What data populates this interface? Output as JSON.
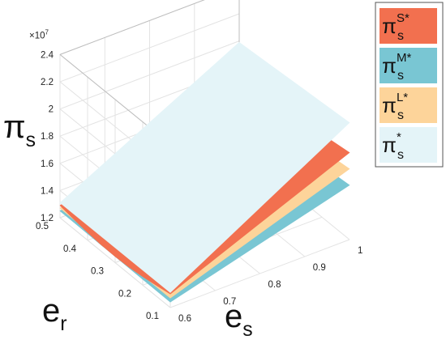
{
  "chart_data": {
    "type": "surface",
    "title": "",
    "xlabel": "e_s",
    "ylabel": "e_r",
    "zlabel": "π_s",
    "x_ticks": [
      0.6,
      0.7,
      0.8,
      0.9,
      1
    ],
    "y_ticks": [
      0.1,
      0.2,
      0.3,
      0.4,
      0.5
    ],
    "z_ticks": [
      1.2,
      1.4,
      1.6,
      1.8,
      2,
      2.2,
      2.4
    ],
    "z_exponent": "×10^7",
    "xlim": [
      0.6,
      1.0
    ],
    "ylim": [
      0.1,
      0.5
    ],
    "zlim": [
      1.2,
      2.4
    ],
    "grid": true,
    "legend_position": "outside-right",
    "series": [
      {
        "name": "π_s^S*",
        "color": "#f2704f",
        "corners": {
          "es0.6_er0.5": 1.29,
          "es0.6_er0.1": 1.3,
          "es1.0_er0.1": 1.84,
          "es1.0_er0.5": 1.72
        }
      },
      {
        "name": "π_s^M*",
        "color": "#79c6d3",
        "corners": {
          "es0.6_er0.5": 1.25,
          "es0.6_er0.1": 1.24,
          "es1.0_er0.1": 1.6,
          "es1.0_er0.5": 1.52
        }
      },
      {
        "name": "π_s^L*",
        "color": "#fdd49a",
        "corners": {
          "es0.6_er0.5": 1.27,
          "es0.6_er0.1": 1.27,
          "es1.0_er0.1": 1.72,
          "es1.0_er0.5": 1.62
        }
      },
      {
        "name": "π_s^*",
        "color": "#e4f4f8",
        "corners": {
          "es0.6_er0.5": 1.31,
          "es0.6_er0.1": 1.31,
          "es1.0_er0.1": 2.06,
          "es1.0_er0.5": 1.99
        }
      }
    ]
  },
  "labels": {
    "z_main": "π",
    "z_sub": "s",
    "y_main": "e",
    "y_sub": "r",
    "x_main": "e",
    "x_sub": "s",
    "exponent": "×10",
    "exponent_power": "7"
  },
  "legend": [
    {
      "main": "π",
      "sub": "s",
      "sup": "S*",
      "color": "#f2704f"
    },
    {
      "main": "π",
      "sub": "s",
      "sup": "M*",
      "color": "#79c6d3"
    },
    {
      "main": "π",
      "sub": "s",
      "sup": "L*",
      "color": "#fdd49a"
    },
    {
      "main": "π",
      "sub": "s",
      "sup": "*",
      "color": "#e4f4f8"
    }
  ]
}
